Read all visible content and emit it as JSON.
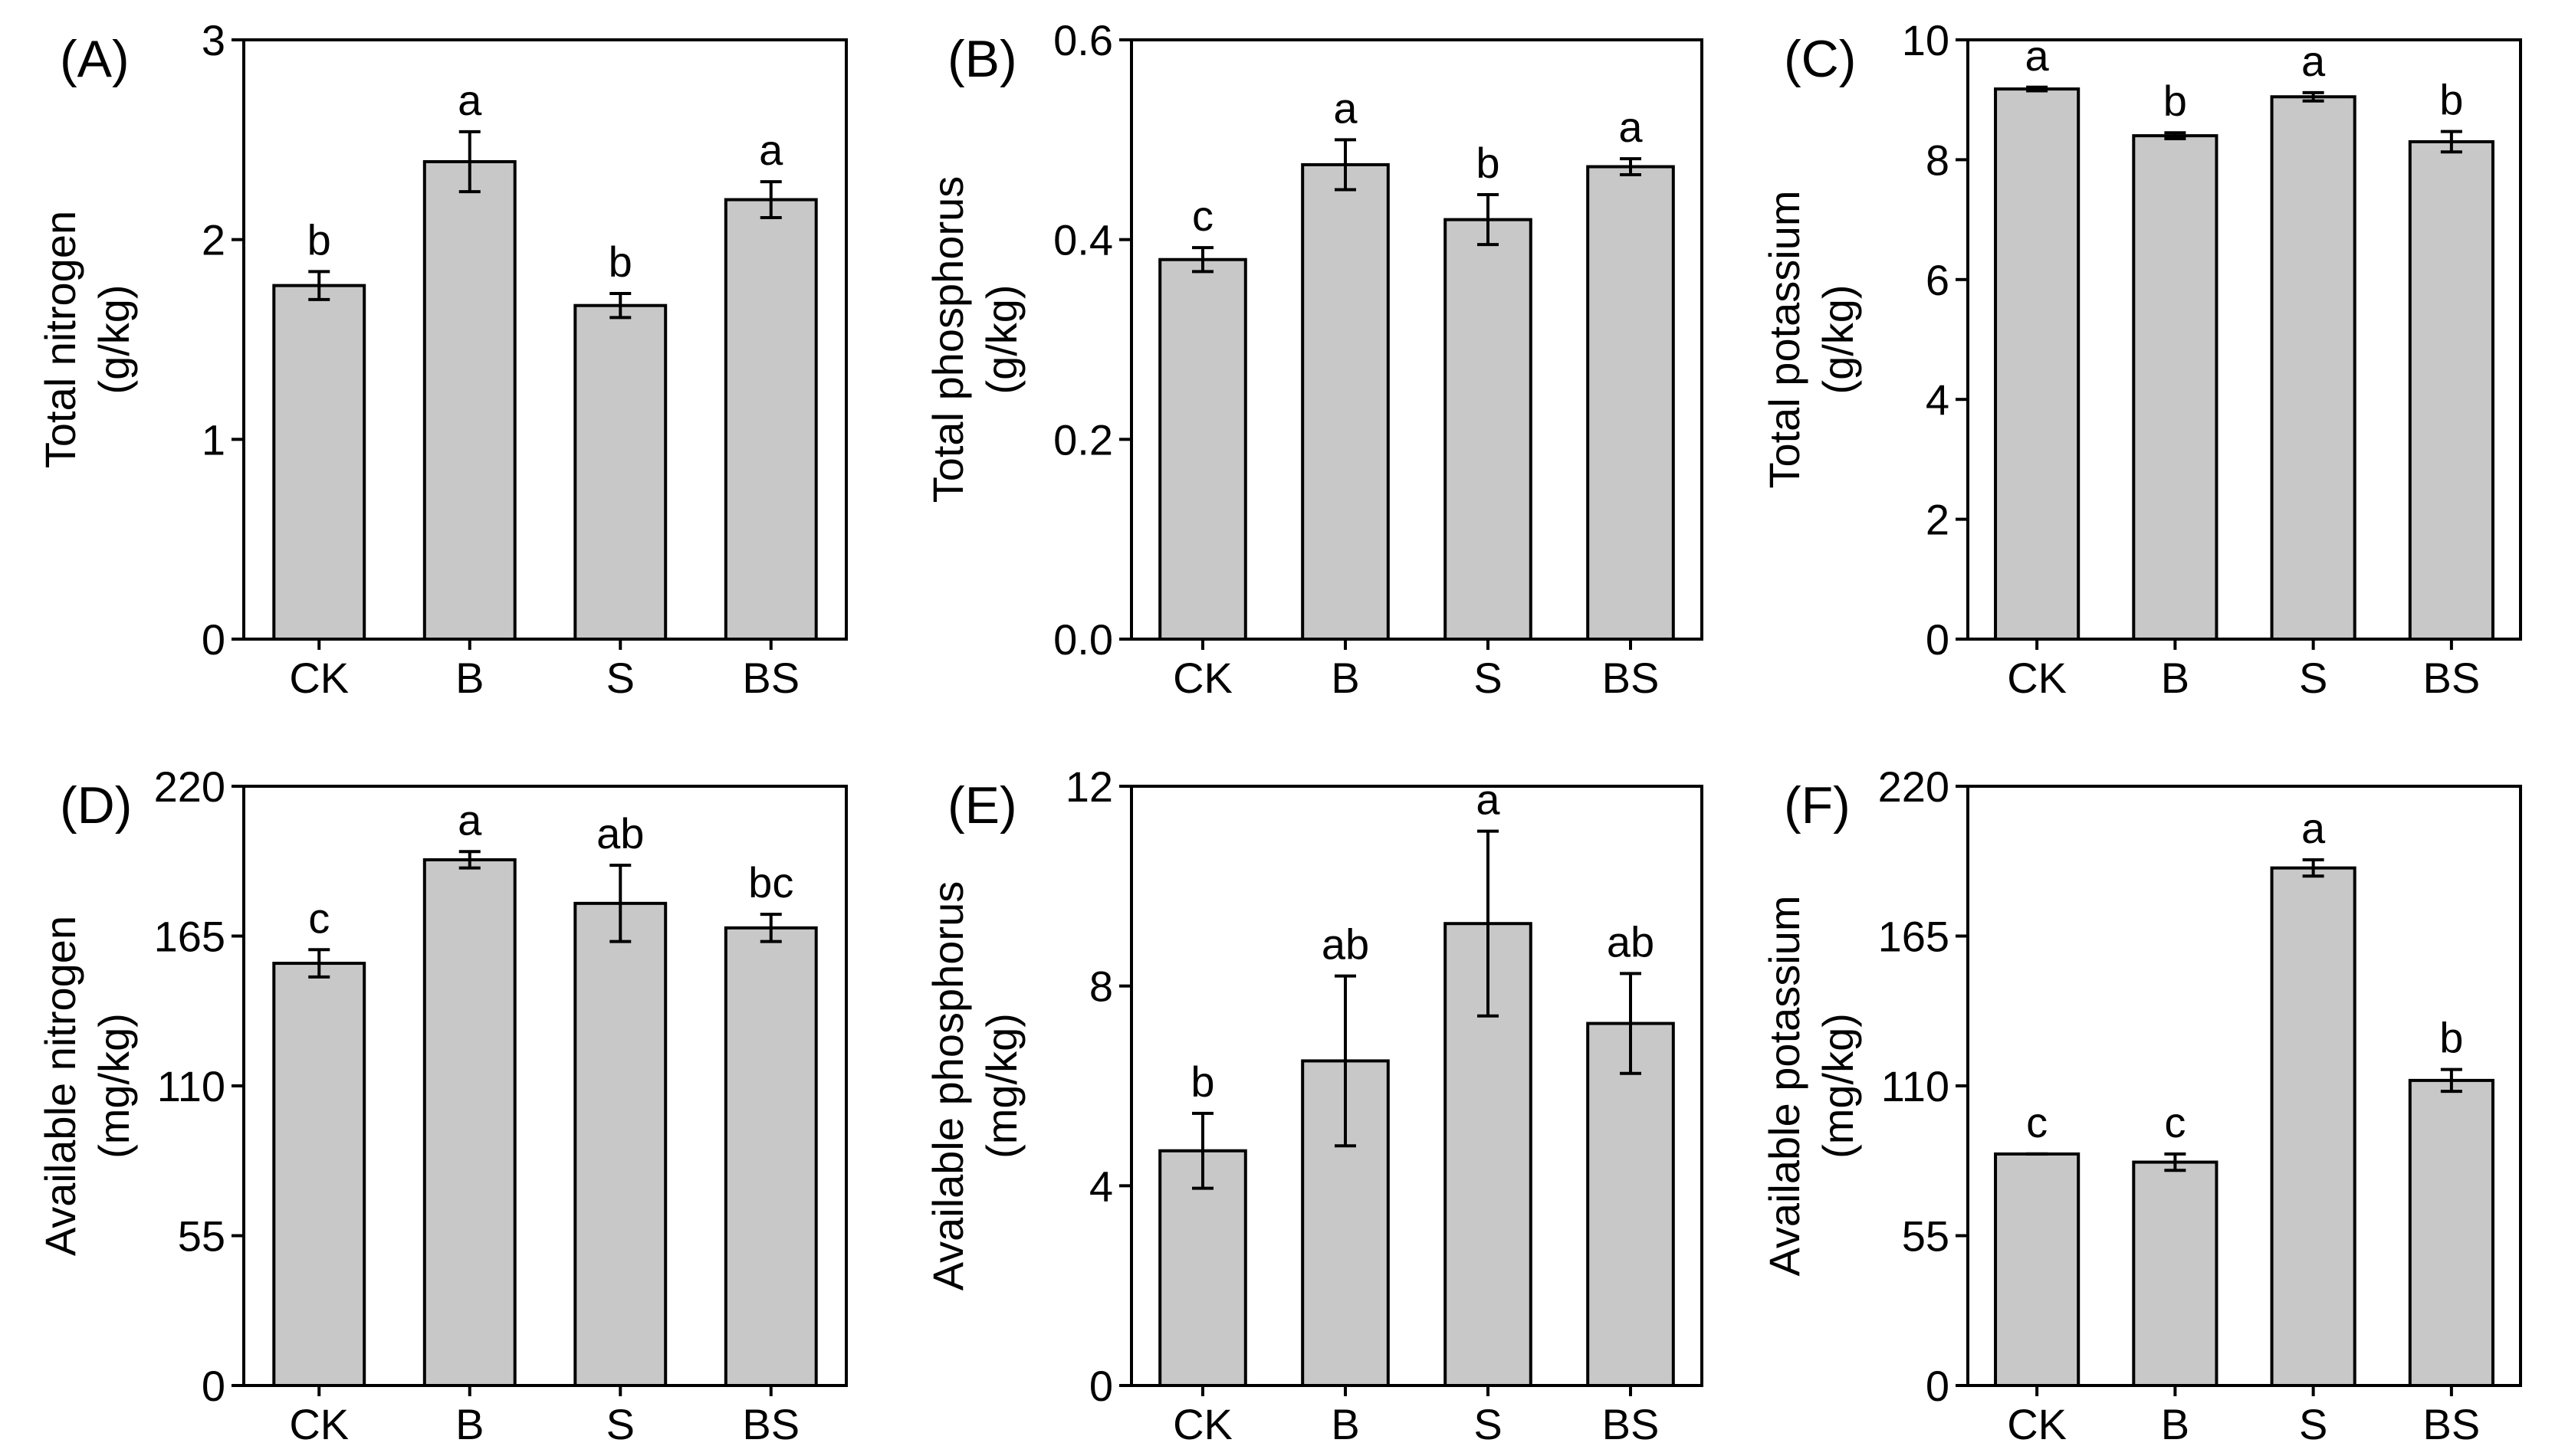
{
  "chart_data": [
    {
      "panel": "(A)",
      "type": "bar",
      "categories": [
        "CK",
        "B",
        "S",
        "BS"
      ],
      "values": [
        1.77,
        2.39,
        1.67,
        2.2
      ],
      "errors": [
        0.07,
        0.15,
        0.06,
        0.09
      ],
      "letters": [
        "b",
        "a",
        "b",
        "a"
      ],
      "ylabel_line1": "Total nitrogen",
      "ylabel_line2": "(g/kg)",
      "ylim": [
        0,
        3
      ],
      "yticks": [
        0,
        1,
        2,
        3
      ],
      "ytick_labels": [
        "0",
        "1",
        "2",
        "3"
      ]
    },
    {
      "panel": "(B)",
      "type": "bar",
      "categories": [
        "CK",
        "B",
        "S",
        "BS"
      ],
      "values": [
        0.38,
        0.475,
        0.42,
        0.473
      ],
      "errors": [
        0.012,
        0.025,
        0.025,
        0.008
      ],
      "letters": [
        "c",
        "a",
        "b",
        "a"
      ],
      "ylabel_line1": "Total phosphorus",
      "ylabel_line2": "(g/kg)",
      "ylim": [
        0,
        0.6
      ],
      "yticks": [
        0,
        0.2,
        0.4,
        0.6
      ],
      "ytick_labels": [
        "0.0",
        "0.2",
        "0.4",
        "0.6"
      ]
    },
    {
      "panel": "(C)",
      "type": "bar",
      "categories": [
        "CK",
        "B",
        "S",
        "BS"
      ],
      "values": [
        9.18,
        8.4,
        9.05,
        8.3
      ],
      "errors": [
        0.03,
        0.05,
        0.07,
        0.17
      ],
      "letters": [
        "a",
        "b",
        "a",
        "b"
      ],
      "ylabel_line1": "Total potassium",
      "ylabel_line2": "(g/kg)",
      "ylim": [
        0,
        10
      ],
      "yticks": [
        0,
        2,
        4,
        6,
        8,
        10
      ],
      "ytick_labels": [
        "0",
        "2",
        "4",
        "6",
        "8",
        "10"
      ]
    },
    {
      "panel": "(D)",
      "type": "bar",
      "categories": [
        "CK",
        "B",
        "S",
        "BS"
      ],
      "values": [
        155,
        193,
        177,
        168
      ],
      "errors": [
        5,
        3,
        14,
        5
      ],
      "letters": [
        "c",
        "a",
        "ab",
        "bc"
      ],
      "ylabel_line1": "Available nitrogen",
      "ylabel_line2": "(mg/kg)",
      "ylim": [
        0,
        220
      ],
      "yticks": [
        0,
        55,
        110,
        165,
        220
      ],
      "ytick_labels": [
        "0",
        "55",
        "110",
        "165",
        "220"
      ]
    },
    {
      "panel": "(E)",
      "type": "bar",
      "categories": [
        "CK",
        "B",
        "S",
        "BS"
      ],
      "values": [
        4.7,
        6.5,
        9.25,
        7.25
      ],
      "errors": [
        0.75,
        1.7,
        1.85,
        1.0
      ],
      "letters": [
        "b",
        "ab",
        "a",
        "ab"
      ],
      "ylabel_line1": "Available phosphorus",
      "ylabel_line2": "(mg/kg)",
      "ylim": [
        0,
        12
      ],
      "yticks": [
        0,
        4,
        8,
        12
      ],
      "ytick_labels": [
        "0",
        "4",
        "8",
        "12"
      ]
    },
    {
      "panel": "(F)",
      "type": "bar",
      "categories": [
        "CK",
        "B",
        "S",
        "BS"
      ],
      "values": [
        85,
        82,
        190,
        112
      ],
      "errors": [
        0,
        3,
        3,
        4
      ],
      "letters": [
        "c",
        "c",
        "a",
        "b"
      ],
      "ylabel_line1": "Available potassium",
      "ylabel_line2": "(mg/kg)",
      "ylim": [
        0,
        220
      ],
      "yticks": [
        0,
        55,
        110,
        165,
        220
      ],
      "ytick_labels": [
        "0",
        "55",
        "110",
        "165",
        "220"
      ]
    }
  ]
}
